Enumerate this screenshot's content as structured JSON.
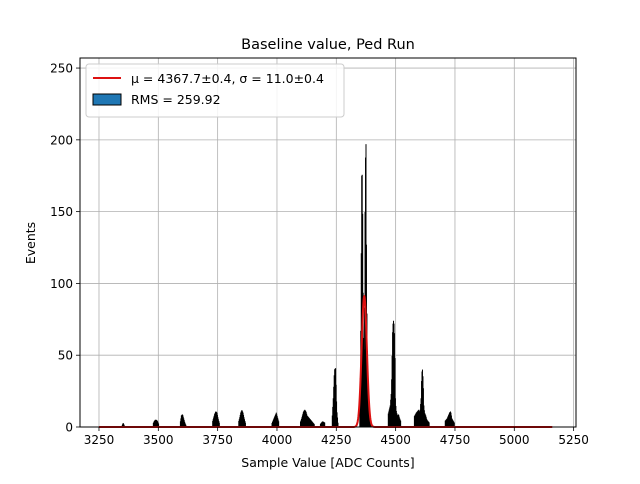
{
  "chart_data": {
    "type": "bar",
    "title": "Baseline value, Ped Run",
    "xlabel": "Sample Value [ADC Counts]",
    "ylabel": "Events",
    "xlim": [
      3170,
      5260
    ],
    "ylim": [
      0,
      257
    ],
    "xticks": [
      3250,
      3500,
      3750,
      4000,
      4250,
      4500,
      4750,
      5000,
      5250
    ],
    "yticks": [
      0,
      50,
      100,
      150,
      200,
      250
    ],
    "grid": true,
    "legend_position": "top-left",
    "legend": {
      "fit_label": "μ = 4367.7±0.4, σ = 11.0±0.4",
      "hist_label": "RMS = 259.92"
    },
    "histogram": {
      "color": "#000000",
      "edgecolor": "#000000",
      "points": [
        [
          3345,
          1
        ],
        [
          3350,
          3
        ],
        [
          3355,
          1
        ],
        [
          3475,
          2
        ],
        [
          3480,
          4
        ],
        [
          3485,
          5
        ],
        [
          3490,
          5
        ],
        [
          3495,
          4
        ],
        [
          3500,
          2
        ],
        [
          3590,
          3
        ],
        [
          3595,
          8
        ],
        [
          3600,
          9
        ],
        [
          3605,
          6
        ],
        [
          3610,
          3
        ],
        [
          3615,
          1
        ],
        [
          3725,
          3
        ],
        [
          3730,
          6
        ],
        [
          3735,
          9
        ],
        [
          3740,
          11
        ],
        [
          3745,
          10
        ],
        [
          3750,
          6
        ],
        [
          3755,
          3
        ],
        [
          3835,
          3
        ],
        [
          3840,
          6
        ],
        [
          3845,
          10
        ],
        [
          3850,
          12
        ],
        [
          3855,
          10
        ],
        [
          3860,
          6
        ],
        [
          3865,
          3
        ],
        [
          3975,
          2
        ],
        [
          3980,
          4
        ],
        [
          3985,
          6
        ],
        [
          3990,
          8
        ],
        [
          3995,
          10
        ],
        [
          4000,
          7
        ],
        [
          4005,
          4
        ],
        [
          4095,
          3
        ],
        [
          4100,
          5
        ],
        [
          4105,
          8
        ],
        [
          4110,
          11
        ],
        [
          4115,
          12
        ],
        [
          4120,
          11
        ],
        [
          4125,
          8
        ],
        [
          4130,
          7
        ],
        [
          4135,
          6
        ],
        [
          4140,
          5
        ],
        [
          4145,
          4
        ],
        [
          4150,
          3
        ],
        [
          4155,
          2
        ],
        [
          4180,
          2
        ],
        [
          4190,
          4
        ],
        [
          4200,
          3
        ],
        [
          4230,
          5
        ],
        [
          4235,
          20
        ],
        [
          4240,
          40
        ],
        [
          4245,
          41
        ],
        [
          4250,
          12
        ],
        [
          4255,
          3
        ],
        [
          4280,
          2
        ],
        [
          4300,
          3
        ],
        [
          4345,
          10
        ],
        [
          4350,
          40
        ],
        [
          4355,
          175
        ],
        [
          4358,
          176
        ],
        [
          4362,
          66
        ],
        [
          4366,
          50
        ],
        [
          4370,
          183
        ],
        [
          4373,
          197
        ],
        [
          4376,
          92
        ],
        [
          4380,
          40
        ],
        [
          4385,
          15
        ],
        [
          4390,
          6
        ],
        [
          4395,
          3
        ],
        [
          4410,
          2
        ],
        [
          4430,
          4
        ],
        [
          4450,
          6
        ],
        [
          4465,
          8
        ],
        [
          4475,
          15
        ],
        [
          4480,
          25
        ],
        [
          4485,
          66
        ],
        [
          4488,
          75
        ],
        [
          4491,
          72
        ],
        [
          4494,
          62
        ],
        [
          4497,
          20
        ],
        [
          4500,
          12
        ],
        [
          4505,
          8
        ],
        [
          4510,
          9
        ],
        [
          4515,
          6
        ],
        [
          4520,
          4
        ],
        [
          4540,
          3
        ],
        [
          4560,
          5
        ],
        [
          4575,
          7
        ],
        [
          4585,
          10
        ],
        [
          4595,
          12
        ],
        [
          4600,
          10
        ],
        [
          4605,
          20
        ],
        [
          4608,
          38
        ],
        [
          4611,
          40
        ],
        [
          4614,
          33
        ],
        [
          4617,
          15
        ],
        [
          4620,
          10
        ],
        [
          4625,
          8
        ],
        [
          4630,
          5
        ],
        [
          4640,
          3
        ],
        [
          4660,
          2
        ],
        [
          4690,
          2
        ],
        [
          4705,
          4
        ],
        [
          4715,
          6
        ],
        [
          4725,
          10
        ],
        [
          4730,
          11
        ],
        [
          4735,
          6
        ],
        [
          4745,
          3
        ],
        [
          4760,
          1
        ],
        [
          4810,
          1
        ],
        [
          4840,
          2
        ],
        [
          4860,
          4
        ],
        [
          4880,
          3
        ],
        [
          4970,
          1
        ],
        [
          5010,
          1
        ]
      ]
    },
    "fit": {
      "color": "#dd1111",
      "mu": 4367.7,
      "sigma": 11.0,
      "amplitude": 91,
      "x_range": [
        3250,
        5160
      ]
    }
  }
}
